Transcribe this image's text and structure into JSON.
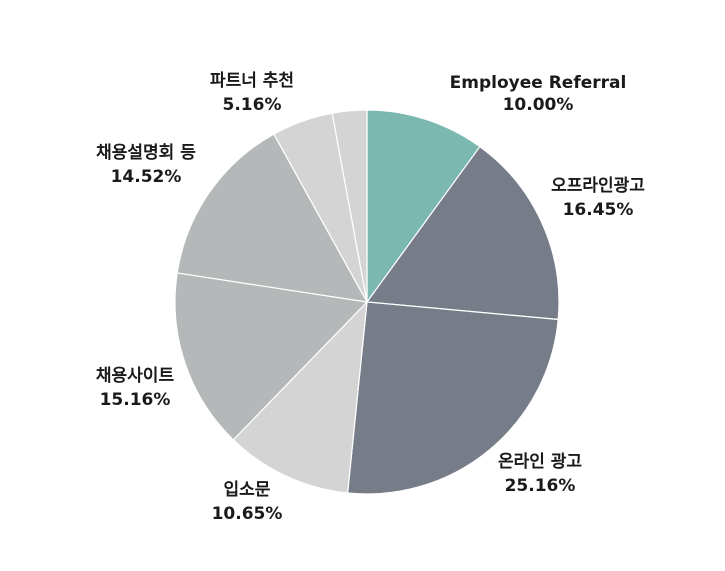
{
  "chart_data": {
    "type": "pie",
    "title": "",
    "start_angle_deg": 0,
    "direction": "clockwise",
    "slices": [
      {
        "label": "Employee Referral",
        "value": 10.0,
        "value_label": "10.00%",
        "color": "#7ab8b0"
      },
      {
        "label": "오프라인광고",
        "value": 16.45,
        "value_label": "16.45%",
        "color": "#767d89"
      },
      {
        "label": "온라인 광고",
        "value": 25.16,
        "value_label": "25.16%",
        "color": "#767d89"
      },
      {
        "label": "입소문",
        "value": 10.65,
        "value_label": "10.65%",
        "color": "#d4d4d4"
      },
      {
        "label": "채용사이트",
        "value": 15.16,
        "value_label": "15.16%",
        "color": "#b4b8b8"
      },
      {
        "label": "채용설명회 등",
        "value": 14.52,
        "value_label": "14.52%",
        "color": "#b4b8b8"
      },
      {
        "label": "파트너 추천",
        "value": 5.16,
        "value_label": "5.16%",
        "color": "#d4d4d4"
      },
      {
        "label": "",
        "value": 2.9,
        "value_label": "",
        "color": "#d4d4d4"
      }
    ]
  }
}
